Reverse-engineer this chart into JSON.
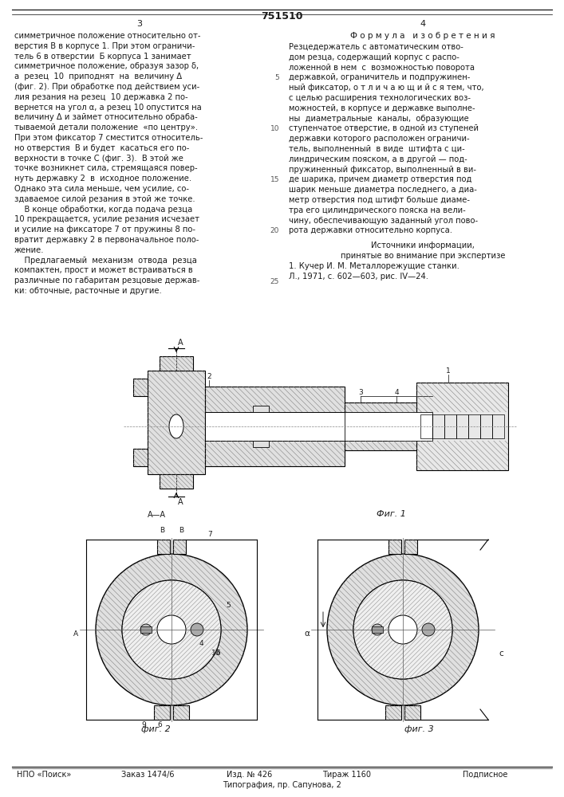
{
  "patent_number": "751510",
  "page_left": "3",
  "page_right": "4",
  "background_color": "#ffffff",
  "text_color": "#1a1a1a",
  "left_col_lines": [
    "симметричное положение относительно от-",
    "верстия В в корпусе 1. При этом ограничи-",
    "тель 6 в отверстии  Б корпуса 1 занимает",
    "симметричное положение, образуя зазор δ,",
    "а  резец  10  приподнят  на  величину Δ",
    "(фиг. 2). При обработке под действием уси-",
    "лия резания на резец  10 державка 2 по-",
    "вернется на угол α, а резец 10 опустится на",
    "величину Δ и займет относительно обраба-",
    "тываемой детали положение  «по центру».",
    "При этом фиксатор 7 сместится относитель-",
    "но отверстия  В и будет  касаться его по-",
    "верхности в точке С (фиг. 3).  В этой же",
    "точке возникнет сила, стремящаяся повер-",
    "нуть державку 2  в  исходное положение.",
    "Однако эта сила меньше, чем усилие, со-",
    "здаваемое силой резания в этой же точке.",
    "    В конце обработки, когда подача резца",
    "10 прекращается, усилие резания исчезает",
    "и усилие на фиксаторе 7 от пружины 8 по-",
    "вратит державку 2 в первоначальное поло-",
    "жение.",
    "    Предлагаемый  механизм  отвода  резца",
    "компактен, прост и может встраиваться в",
    "различные по габаритам резцовые держав-",
    "ки: обточные, расточные и другие."
  ],
  "right_col_header": "Ф о р м у л а   и з о б р е т е н и я",
  "right_col_lines": [
    "Резцедержатель с автоматическим отво-",
    "дом резца, содержащий корпус с распо-",
    "ложенной в нем  с  возможностью поворота",
    "державкой, ограничитель и подпружинен-",
    "ный фиксатор, о т л и ч а ю щ и й с я тем, что,",
    "с целью расширения технологических воз-",
    "можностей, в корпусе и державке выполне-",
    "ны  диаметральные  каналы,  образующие",
    "ступенчатое отверстие, в одной из ступеней",
    "державки которого расположен ограничи-",
    "тель, выполненный  в виде  штифта с ци-",
    "линдрическим пояском, а в другой — под-",
    "пружиненный фиксатор, выполненный в ви-",
    "де шарика, причем диаметр отверстия под",
    "шарик меньше диаметра последнего, а диа-",
    "метр отверстия под штифт больше диаме-",
    "тра его цилиндрического пояска на вели-",
    "чину, обеспечивающую заданный угол пово-",
    "рота державки относительно корпуса."
  ],
  "sources_header": "Источники информации,",
  "sources_sub": "принятые во внимание при экспертизе",
  "sources_body": "1. Кучер И. М. Металлорежущие станки.",
  "sources_body2": "Л., 1971, с. 602—603, рис. IV—24.",
  "line_numbers": [
    "5",
    "10",
    "15",
    "20",
    "25"
  ],
  "fig1_label": "Фиг. 1",
  "fig2_label": "фиг. 2",
  "fig3_label": "фиг. 3",
  "footer_cols": [
    "НПО «Поиск»",
    "Заказ 1474/6",
    "Изд. № 426",
    "Тираж 1160",
    "Подписное"
  ],
  "footer_sub": "Типография, пр. Сапунова, 2"
}
